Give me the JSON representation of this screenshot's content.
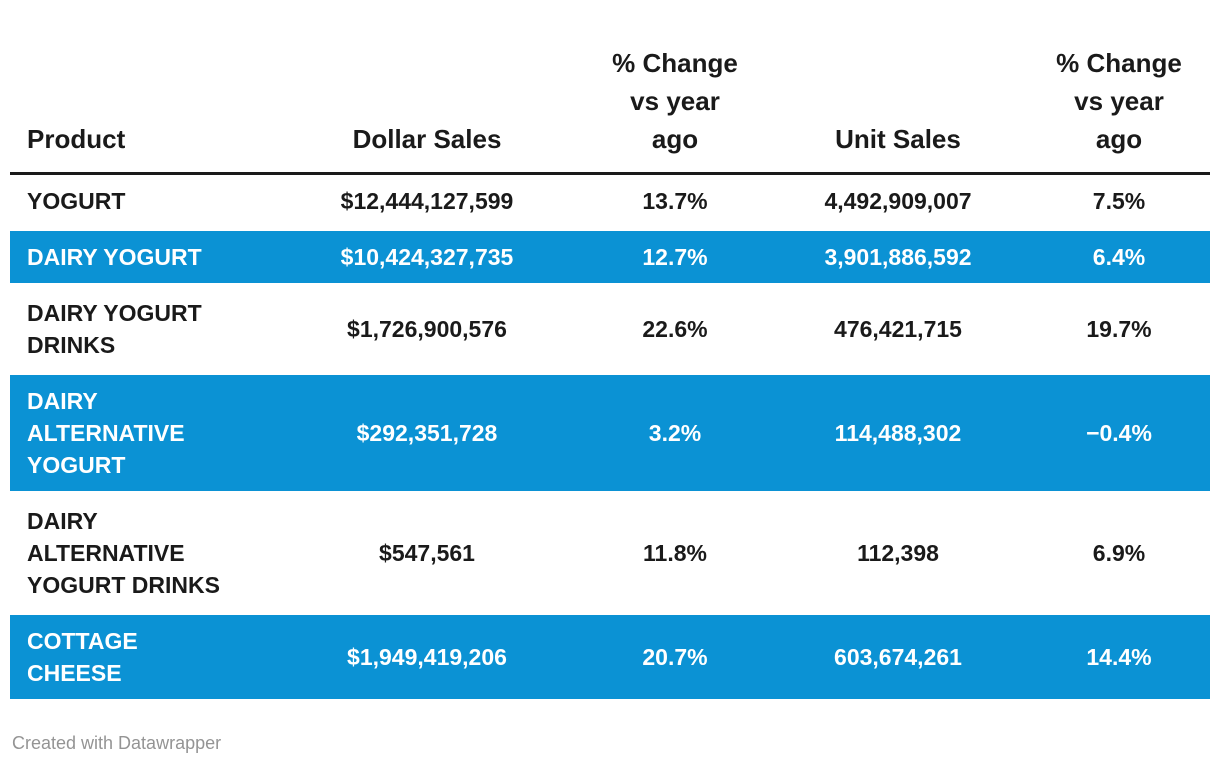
{
  "chart_data": {
    "type": "table",
    "columns": [
      "Product",
      "Dollar Sales",
      "% Change vs year ago",
      "Unit Sales",
      "% Change vs year ago"
    ],
    "rows": [
      [
        "YOGURT",
        "$12,444,127,599",
        "13.7%",
        "4,492,909,007",
        "7.5%"
      ],
      [
        "DAIRY YOGURT",
        "$10,424,327,735",
        "12.7%",
        "3,901,886,592",
        "6.4%"
      ],
      [
        "DAIRY YOGURT DRINKS",
        "$1,726,900,576",
        "22.6%",
        "476,421,715",
        "19.7%"
      ],
      [
        "DAIRY ALTERNATIVE YOGURT",
        "$292,351,728",
        "3.2%",
        "114,488,302",
        "−0.4%"
      ],
      [
        "DAIRY ALTERNATIVE YOGURT DRINKS",
        "$547,561",
        "11.8%",
        "112,398",
        "6.9%"
      ],
      [
        "COTTAGE CHEESE",
        "$1,949,419,206",
        "20.7%",
        "603,674,261",
        "14.4%"
      ]
    ],
    "highlighted_rows": [
      "DAIRY YOGURT",
      "DAIRY ALTERNATIVE YOGURT",
      "COTTAGE CHEESE"
    ],
    "layout_hints": {
      "highlight_style": "full-row blue background with white text",
      "header_rule": "thick dark line under header row",
      "alignment": "product left, all numeric columns centered"
    }
  },
  "table": {
    "headers": {
      "product": "Product",
      "dollar_sales": "Dollar Sales",
      "dollar_change": "% Change\nvs year\nago",
      "unit_sales": "Unit Sales",
      "unit_change": "% Change\nvs year\nago"
    },
    "rows": [
      {
        "product": "YOGURT",
        "dollar_sales": "$12,444,127,599",
        "dollar_change": "13.7%",
        "unit_sales": "4,492,909,007",
        "unit_change": "7.5%",
        "highlighted": false
      },
      {
        "product": "DAIRY YOGURT",
        "dollar_sales": "$10,424,327,735",
        "dollar_change": "12.7%",
        "unit_sales": "3,901,886,592",
        "unit_change": "6.4%",
        "highlighted": true
      },
      {
        "product": "DAIRY YOGURT\nDRINKS",
        "dollar_sales": "$1,726,900,576",
        "dollar_change": "22.6%",
        "unit_sales": "476,421,715",
        "unit_change": "19.7%",
        "highlighted": false
      },
      {
        "product": "DAIRY\nALTERNATIVE\nYOGURT",
        "dollar_sales": "$292,351,728",
        "dollar_change": "3.2%",
        "unit_sales": "114,488,302",
        "unit_change": "−0.4%",
        "highlighted": true
      },
      {
        "product": "DAIRY\nALTERNATIVE\nYOGURT DRINKS",
        "dollar_sales": "$547,561",
        "dollar_change": "11.8%",
        "unit_sales": "112,398",
        "unit_change": "6.9%",
        "highlighted": false
      },
      {
        "product": "COTTAGE\nCHEESE",
        "dollar_sales": "$1,949,419,206",
        "dollar_change": "20.7%",
        "unit_sales": "603,674,261",
        "unit_change": "14.4%",
        "highlighted": true
      }
    ]
  },
  "footer": {
    "credit": "Created with Datawrapper"
  },
  "colors": {
    "highlight_blue": "#0b92d4",
    "text": "#1a1a1a",
    "footer_gray": "#949494"
  }
}
